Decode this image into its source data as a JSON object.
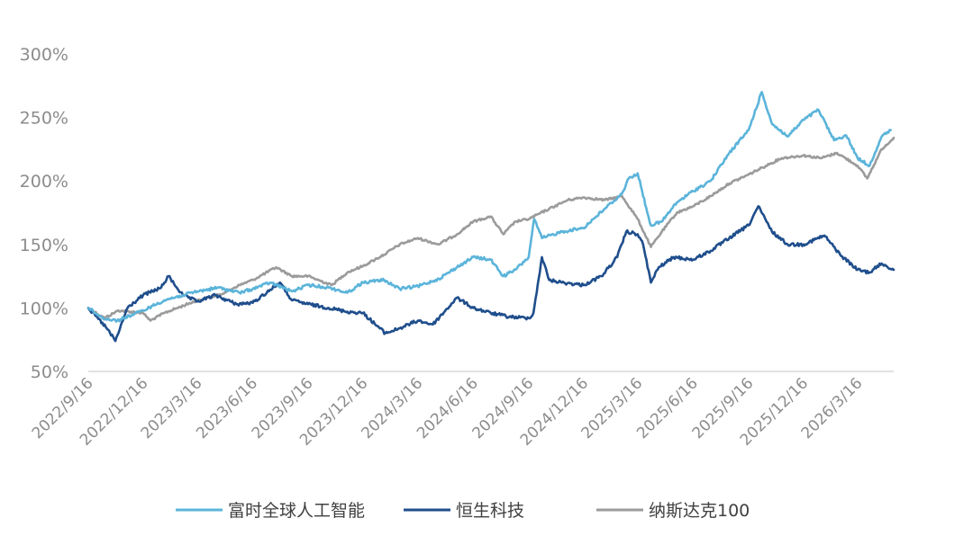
{
  "chart_data": {
    "type": "line",
    "title": "",
    "xlabel": "",
    "ylabel": "",
    "ylim": [
      50,
      300
    ],
    "y_ticks": [
      "300%",
      "250%",
      "200%",
      "150%",
      "100%",
      "50%"
    ],
    "y_tick_values": [
      300,
      250,
      200,
      150,
      100,
      50
    ],
    "x_tick_labels": [
      "2022/9/16",
      "2022/12/16",
      "2023/3/16",
      "2023/6/16",
      "2023/9/16",
      "2023/12/16",
      "2024/3/16",
      "2024/6/16",
      "2024/9/16",
      "2024/12/16",
      "2025/3/16",
      "2025/6/16",
      "2025/9/16",
      "2025/12/16",
      "2026/3/16"
    ],
    "x_tick_dates": [
      "2022-09-16",
      "2022-12-16",
      "2023-03-16",
      "2023-06-16",
      "2023-09-16",
      "2023-12-16",
      "2024-03-16",
      "2024-06-16",
      "2024-09-16",
      "2024-12-16",
      "2025-03-16",
      "2025-06-16",
      "2025-09-16",
      "2025-12-16",
      "2026-03-16"
    ],
    "x_start": "2022-09-16",
    "x_end": "2026-05-15",
    "grid": false,
    "legend_position": "bottom",
    "series": [
      {
        "name": "富时全球人工智能",
        "color": "#5bb4da",
        "x": [
          "2022-09-16",
          "2022-10-10",
          "2022-11-03",
          "2022-12-16",
          "2023-01-20",
          "2023-02-20",
          "2023-03-16",
          "2023-04-20",
          "2023-05-25",
          "2023-06-16",
          "2023-07-15",
          "2023-08-20",
          "2023-09-16",
          "2023-10-20",
          "2023-11-20",
          "2023-12-16",
          "2024-01-20",
          "2024-02-15",
          "2024-03-16",
          "2024-04-20",
          "2024-05-20",
          "2024-06-16",
          "2024-07-15",
          "2024-08-05",
          "2024-08-25",
          "2024-09-16",
          "2024-09-25",
          "2024-10-08",
          "2024-11-10",
          "2024-12-16",
          "2025-01-20",
          "2025-02-18",
          "2025-03-01",
          "2025-03-16",
          "2025-04-01",
          "2025-04-07",
          "2025-04-25",
          "2025-05-20",
          "2025-06-16",
          "2025-07-15",
          "2025-08-15",
          "2025-09-16",
          "2025-10-08",
          "2025-10-25",
          "2025-11-20",
          "2025-12-16",
          "2026-01-10",
          "2026-02-05",
          "2026-02-25",
          "2026-03-16",
          "2026-04-05",
          "2026-04-25",
          "2026-05-10"
        ],
        "values": [
          100,
          92,
          90,
          98,
          106,
          110,
          113,
          116,
          112,
          115,
          120,
          113,
          118,
          116,
          112,
          120,
          122,
          115,
          117,
          123,
          132,
          140,
          138,
          125,
          130,
          140,
          170,
          155,
          160,
          163,
          178,
          190,
          202,
          206,
          175,
          165,
          168,
          183,
          192,
          200,
          222,
          240,
          270,
          245,
          235,
          248,
          256,
          232,
          236,
          218,
          212,
          235,
          240
        ]
      },
      {
        "name": "恒生科技",
        "color": "#1f4e8c",
        "x": [
          "2022-09-16",
          "2022-10-15",
          "2022-10-31",
          "2022-11-20",
          "2022-12-16",
          "2023-01-15",
          "2023-01-27",
          "2023-02-20",
          "2023-03-16",
          "2023-04-15",
          "2023-05-20",
          "2023-06-16",
          "2023-07-31",
          "2023-08-20",
          "2023-09-16",
          "2023-10-20",
          "2023-11-20",
          "2023-12-16",
          "2024-01-22",
          "2024-02-15",
          "2024-03-16",
          "2024-04-10",
          "2024-05-20",
          "2024-06-16",
          "2024-07-15",
          "2024-08-15",
          "2024-09-16",
          "2024-09-24",
          "2024-10-08",
          "2024-10-20",
          "2024-11-10",
          "2024-12-16",
          "2025-01-15",
          "2025-02-10",
          "2025-02-25",
          "2025-03-16",
          "2025-03-25",
          "2025-04-07",
          "2025-04-20",
          "2025-05-15",
          "2025-06-16",
          "2025-07-15",
          "2025-08-15",
          "2025-09-16",
          "2025-10-02",
          "2025-10-25",
          "2025-11-20",
          "2025-12-16",
          "2026-01-20",
          "2026-02-15",
          "2026-03-16",
          "2026-04-05",
          "2026-04-25",
          "2026-05-15"
        ],
        "values": [
          100,
          85,
          74,
          100,
          110,
          116,
          125,
          110,
          105,
          110,
          103,
          104,
          120,
          106,
          103,
          100,
          97,
          96,
          80,
          84,
          90,
          87,
          108,
          100,
          96,
          93,
          92,
          96,
          140,
          122,
          120,
          118,
          125,
          140,
          160,
          158,
          150,
          120,
          132,
          140,
          138,
          145,
          155,
          165,
          180,
          160,
          150,
          150,
          157,
          142,
          130,
          128,
          135,
          130
        ]
      },
      {
        "name": "纳斯达克100",
        "color": "#9b9b9b",
        "x": [
          "2022-09-16",
          "2022-10-13",
          "2022-11-05",
          "2022-12-16",
          "2022-12-28",
          "2023-01-20",
          "2023-03-16",
          "2023-04-20",
          "2023-05-25",
          "2023-06-16",
          "2023-07-25",
          "2023-08-20",
          "2023-09-16",
          "2023-10-25",
          "2023-11-20",
          "2023-12-16",
          "2024-01-20",
          "2024-02-15",
          "2024-03-16",
          "2024-04-19",
          "2024-05-20",
          "2024-06-16",
          "2024-07-15",
          "2024-08-05",
          "2024-08-25",
          "2024-09-16",
          "2024-10-20",
          "2024-11-20",
          "2024-12-16",
          "2025-01-20",
          "2025-02-18",
          "2025-03-16",
          "2025-04-07",
          "2025-04-25",
          "2025-05-20",
          "2025-06-16",
          "2025-07-15",
          "2025-08-15",
          "2025-09-16",
          "2025-10-15",
          "2025-11-10",
          "2025-12-16",
          "2026-01-15",
          "2026-02-10",
          "2026-03-16",
          "2026-04-01",
          "2026-04-25",
          "2026-05-15"
        ],
        "values": [
          100,
          92,
          98,
          96,
          90,
          96,
          106,
          110,
          118,
          122,
          132,
          125,
          125,
          118,
          128,
          133,
          142,
          150,
          155,
          150,
          158,
          168,
          172,
          158,
          168,
          170,
          178,
          185,
          187,
          185,
          188,
          170,
          148,
          160,
          175,
          180,
          188,
          198,
          205,
          212,
          218,
          220,
          218,
          222,
          212,
          202,
          225,
          234
        ]
      }
    ]
  }
}
